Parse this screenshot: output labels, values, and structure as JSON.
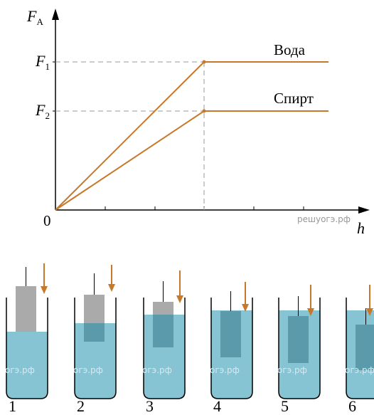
{
  "graph": {
    "y_axis_label": {
      "main": "F",
      "sub": "A"
    },
    "x_axis_label": "h",
    "origin_label": "0",
    "level_1": {
      "main": "F",
      "sub": "1"
    },
    "level_2": {
      "main": "F",
      "sub": "2"
    },
    "line_1_label": "Вода",
    "line_2_label": "Спирт",
    "watermark": "решуогэ.рф"
  },
  "beakers": [
    {
      "number": "1",
      "watermark": "огэ.рф"
    },
    {
      "number": "2",
      "watermark": "огэ.рф"
    },
    {
      "number": "3",
      "watermark": "огэ.рф"
    },
    {
      "number": "4",
      "watermark": "огэ.рф"
    },
    {
      "number": "5",
      "watermark": "огэ.рф"
    },
    {
      "number": "6",
      "watermark": "огэ.рф"
    }
  ]
}
